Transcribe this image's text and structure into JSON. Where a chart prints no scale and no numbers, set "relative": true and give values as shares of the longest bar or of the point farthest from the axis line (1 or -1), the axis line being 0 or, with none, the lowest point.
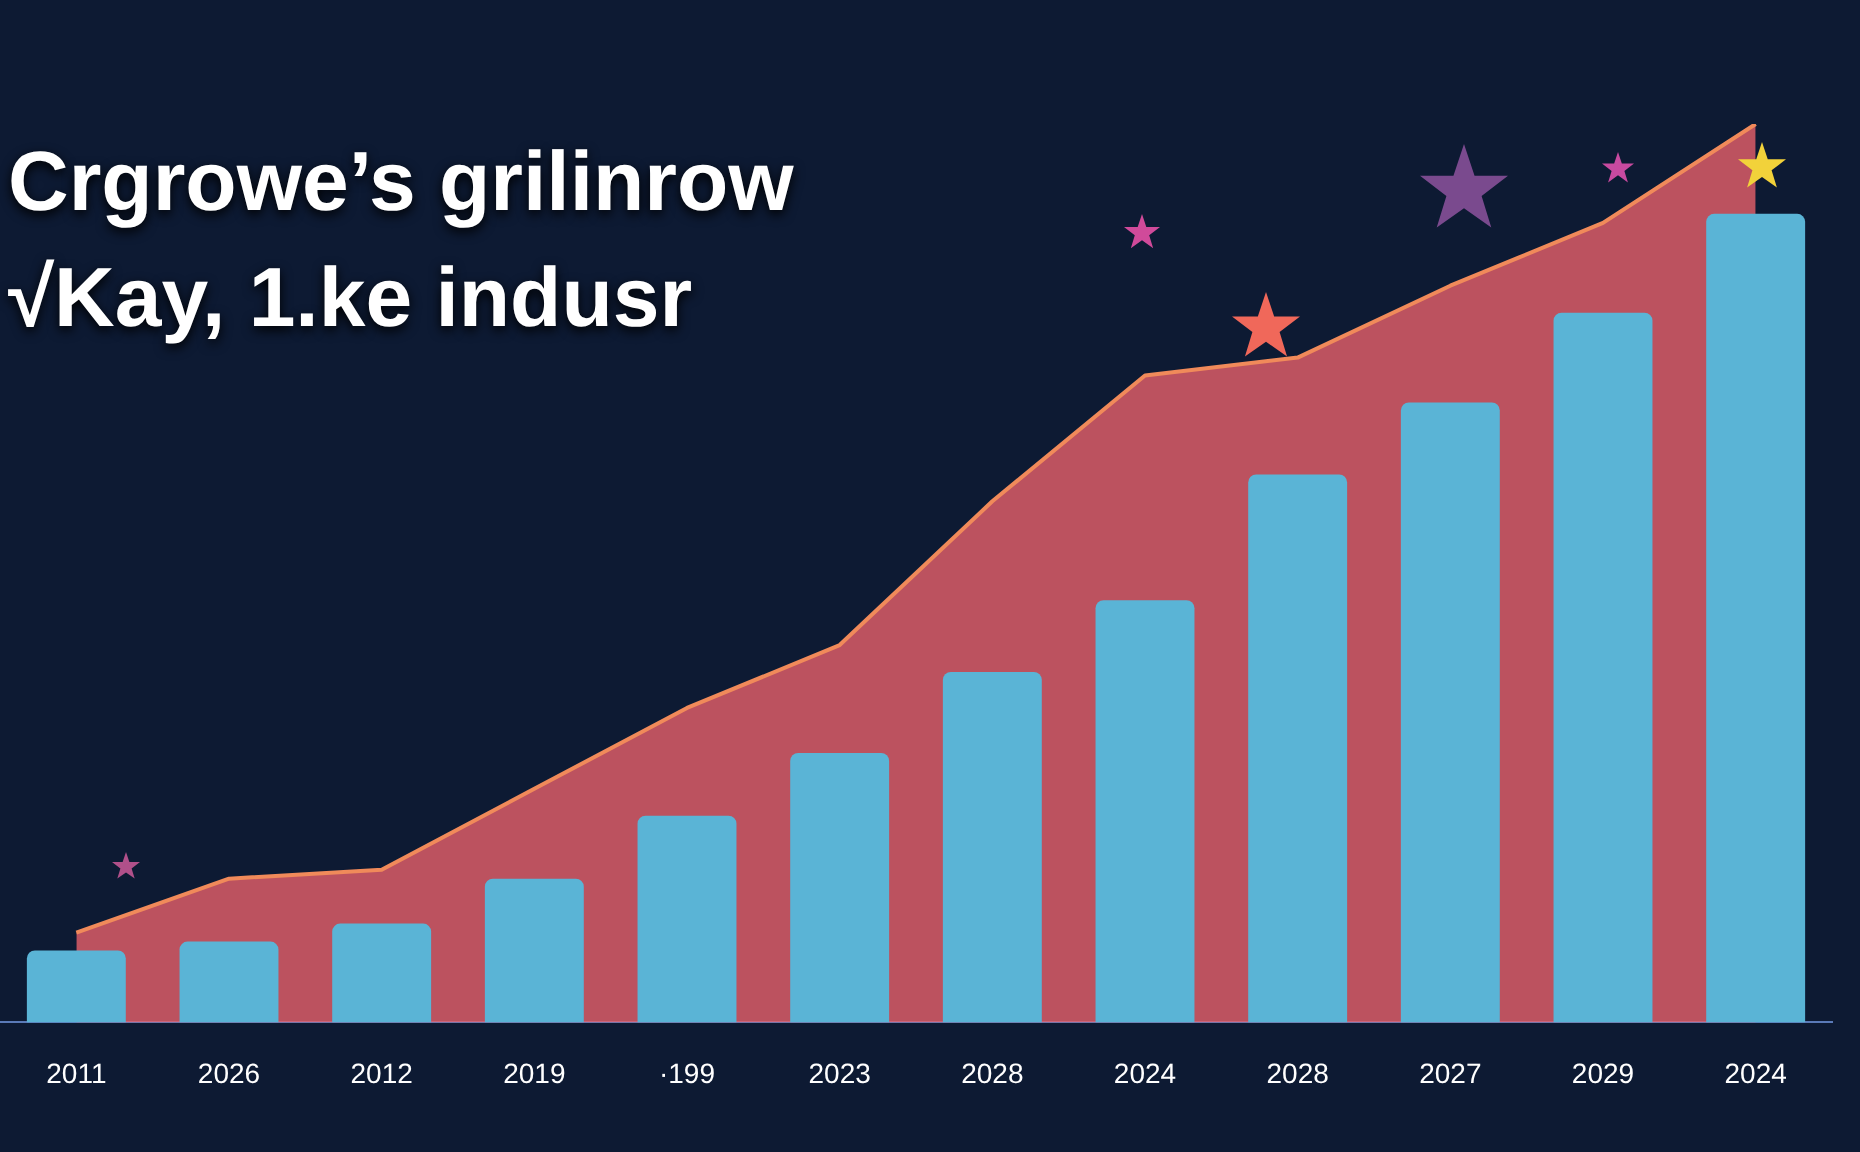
{
  "chart_data": {
    "type": "bar",
    "title": "Crgrowe’s grilinrow\n√Kay, 1.ke indusr",
    "relative": true,
    "legend": false,
    "categories": [
      "2011",
      "2026",
      "2012",
      "2019",
      "·199",
      "2023",
      "2028",
      "2024",
      "2028",
      "2027",
      "2029",
      "2024"
    ],
    "series": [
      {
        "type": "area",
        "color": "#e8606a",
        "values": [
          0.1,
          0.16,
          0.17,
          0.26,
          0.35,
          0.42,
          0.58,
          0.72,
          0.74,
          0.82,
          0.89,
          1
        ]
      },
      {
        "color": "#5ab4d6",
        "values": [
          0.08,
          0.09,
          0.11,
          0.16,
          0.23,
          0.3,
          0.39,
          0.47,
          0.61,
          0.69,
          0.79,
          0.9
        ]
      }
    ]
  }
}
